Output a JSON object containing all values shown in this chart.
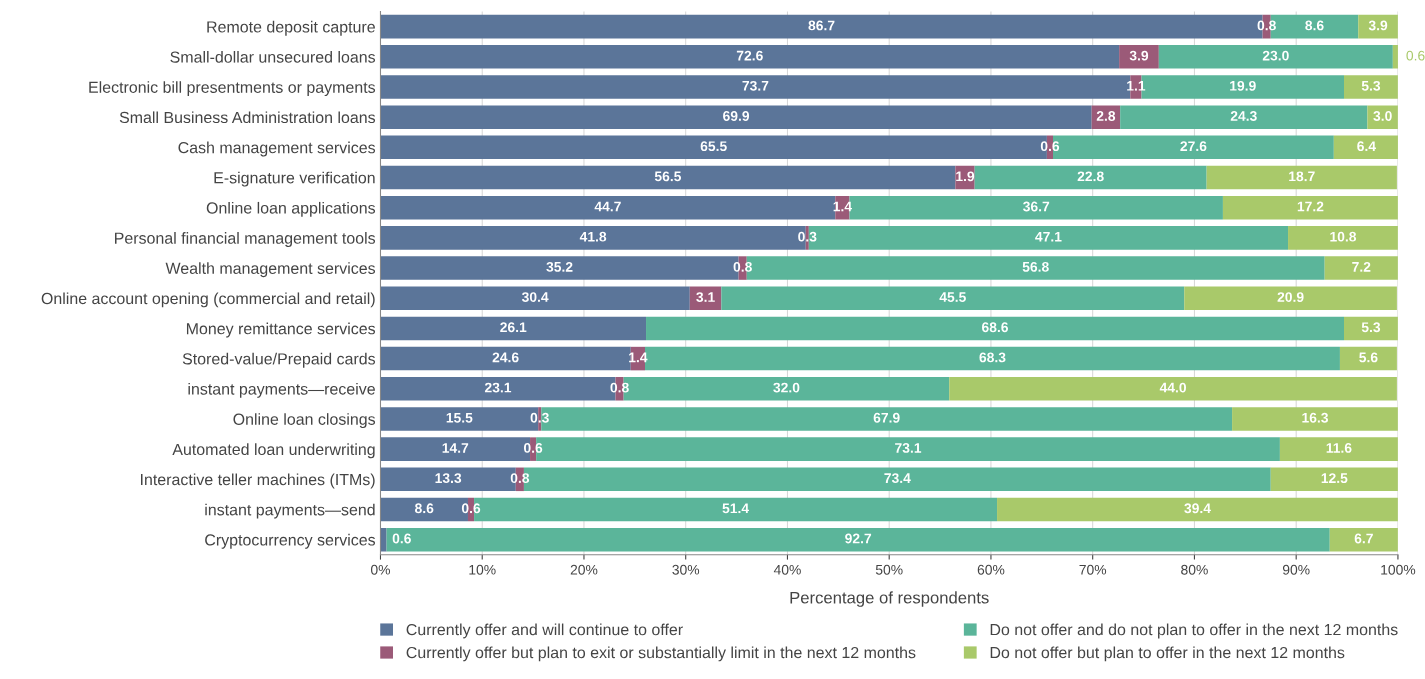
{
  "chart_data": {
    "type": "bar",
    "orientation": "horizontal",
    "stacked": true,
    "xlabel": "Percentage of respondents",
    "categories": [
      "Remote deposit capture",
      "Small-dollar unsecured loans",
      "Electronic bill presentments or payments",
      "Small Business Administration loans",
      "Cash management services",
      "E-signature verification",
      "Online loan applications",
      "Personal financial management tools",
      "Wealth management services",
      "Online account opening (commercial and retail)",
      "Money remittance services",
      "Stored-value/Prepaid cards",
      "instant payments—receive",
      "Online loan closings",
      "Automated loan underwriting",
      "Interactive teller machines (ITMs)",
      "instant payments—send",
      "Cryptocurrency services"
    ],
    "series": [
      {
        "name": "Currently offer and will continue to offer",
        "color": "#5b7599",
        "values": [
          86.7,
          72.6,
          73.7,
          69.9,
          65.5,
          56.5,
          44.7,
          41.8,
          35.2,
          30.4,
          26.1,
          24.6,
          23.1,
          15.5,
          14.7,
          13.3,
          8.6,
          0.6
        ],
        "value_labels": [
          "86.7",
          "72.6",
          "73.7",
          "69.9",
          "65.5",
          "56.5",
          "44.7",
          "41.8",
          "35.2",
          "30.4",
          "26.1",
          "24.6",
          "23.1",
          "15.5",
          "14.7",
          "13.3",
          "8.6",
          "0.6"
        ]
      },
      {
        "name": "Currently offer but plan to exit or substantially limit in the next 12 months",
        "color": "#9b5a78",
        "values": [
          0.8,
          3.9,
          1.1,
          2.8,
          0.6,
          1.9,
          1.4,
          0.3,
          0.8,
          3.1,
          0,
          1.4,
          0.8,
          0.3,
          0.6,
          0.8,
          0.6,
          0
        ],
        "value_labels": [
          "0.8",
          "3.9",
          "1.1",
          "2.8",
          "0.6",
          "1.9",
          "1.4",
          "0.3",
          "0.8",
          "3.1",
          null,
          "1.4",
          "0.8",
          "0.3",
          "0.6",
          "0.8",
          "0.6",
          null
        ]
      },
      {
        "name": "Do not offer and do not plan to offer in the next 12 months",
        "color": "#5bb59a",
        "values": [
          8.6,
          23.0,
          19.9,
          24.3,
          27.6,
          22.8,
          36.7,
          47.1,
          56.8,
          45.5,
          68.6,
          68.3,
          32.0,
          67.9,
          73.1,
          73.4,
          51.4,
          92.7
        ],
        "value_labels": [
          "8.6",
          "23.0",
          "19.9",
          "24.3",
          "27.6",
          "22.8",
          "36.7",
          "47.1",
          "56.8",
          "45.5",
          "68.6",
          "68.3",
          "32.0",
          "67.9",
          "73.1",
          "73.4",
          "51.4",
          "92.7"
        ]
      },
      {
        "name": "Do not offer but plan to offer in the next 12 months",
        "color": "#a9c96a",
        "values": [
          3.9,
          0.6,
          5.3,
          3.0,
          6.4,
          18.7,
          17.2,
          10.8,
          7.2,
          20.9,
          5.3,
          5.6,
          44.0,
          16.3,
          11.6,
          12.5,
          39.4,
          6.7
        ],
        "value_labels": [
          "3.9",
          "0.6",
          "5.3",
          "3.0",
          "6.4",
          "18.7",
          "17.2",
          "10.8",
          "7.2",
          "20.9",
          "5.3",
          "5.6",
          "44.0",
          "16.3",
          "11.6",
          "12.5",
          "39.4",
          "6.7"
        ]
      }
    ],
    "xlim": [
      0,
      100
    ],
    "xticks": [
      {
        "value": 0,
        "label": "0%"
      },
      {
        "value": 10,
        "label": "10%"
      },
      {
        "value": 20,
        "label": "20%"
      },
      {
        "value": 30,
        "label": "30%"
      },
      {
        "value": 40,
        "label": "40%"
      },
      {
        "value": 50,
        "label": "50%"
      },
      {
        "value": 60,
        "label": "60%"
      },
      {
        "value": 70,
        "label": "70%"
      },
      {
        "value": 80,
        "label": "80%"
      },
      {
        "value": 90,
        "label": "90%"
      },
      {
        "value": 100,
        "label": "100%"
      }
    ],
    "grid": "x",
    "legend": "bottom"
  }
}
